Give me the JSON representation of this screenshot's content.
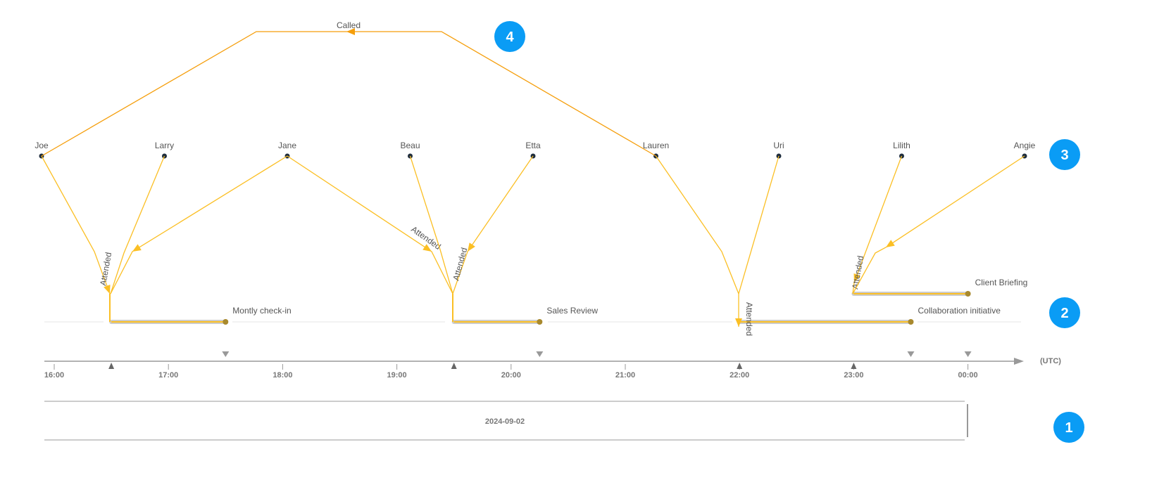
{
  "colors": {
    "attended": "#fbbf24",
    "called": "#f59e0b",
    "event_dot": "#a8892e",
    "badge": "#0a9cf5",
    "person_dot": "#1f2d3d"
  },
  "people": [
    "Joe",
    "Larry",
    "Jane",
    "Beau",
    "Etta",
    "Lauren",
    "Uri",
    "Lilith",
    "Angie"
  ],
  "events": [
    {
      "name": "Montly check-in",
      "start": "16:30",
      "end": "17:30"
    },
    {
      "name": "Sales Review",
      "start": "19:30",
      "end": "20:15"
    },
    {
      "name": "Collaboration initiative",
      "start": "22:00",
      "end": "23:30"
    },
    {
      "name": "Client Briefing",
      "start": "23:00",
      "end": "00:00"
    }
  ],
  "edges": [
    {
      "from": "Joe",
      "to": "Montly check-in",
      "label": "Attended"
    },
    {
      "from": "Larry",
      "to": "Montly check-in",
      "label": ""
    },
    {
      "from": "Jane",
      "to": "Montly check-in",
      "label": ""
    },
    {
      "from": "Jane",
      "to": "Sales Review",
      "label": "Attended"
    },
    {
      "from": "Beau",
      "to": "Sales Review",
      "label": ""
    },
    {
      "from": "Etta",
      "to": "Sales Review",
      "label": "Attended"
    },
    {
      "from": "Lauren",
      "to": "Collaboration initiative",
      "label": "Attended"
    },
    {
      "from": "Uri",
      "to": "Collaboration initiative",
      "label": ""
    },
    {
      "from": "Lilith",
      "to": "Client Briefing",
      "label": "Attended"
    },
    {
      "from": "Angie",
      "to": "Client Briefing",
      "label": ""
    },
    {
      "from": "Lauren",
      "to": "Joe",
      "label": "Called"
    }
  ],
  "axis": {
    "ticks": [
      "16:00",
      "17:00",
      "18:00",
      "19:00",
      "20:00",
      "21:00",
      "22:00",
      "23:00",
      "00:00"
    ],
    "unit": "(UTC)"
  },
  "date": "2024-09-02",
  "badges": [
    "1",
    "2",
    "3",
    "4"
  ]
}
